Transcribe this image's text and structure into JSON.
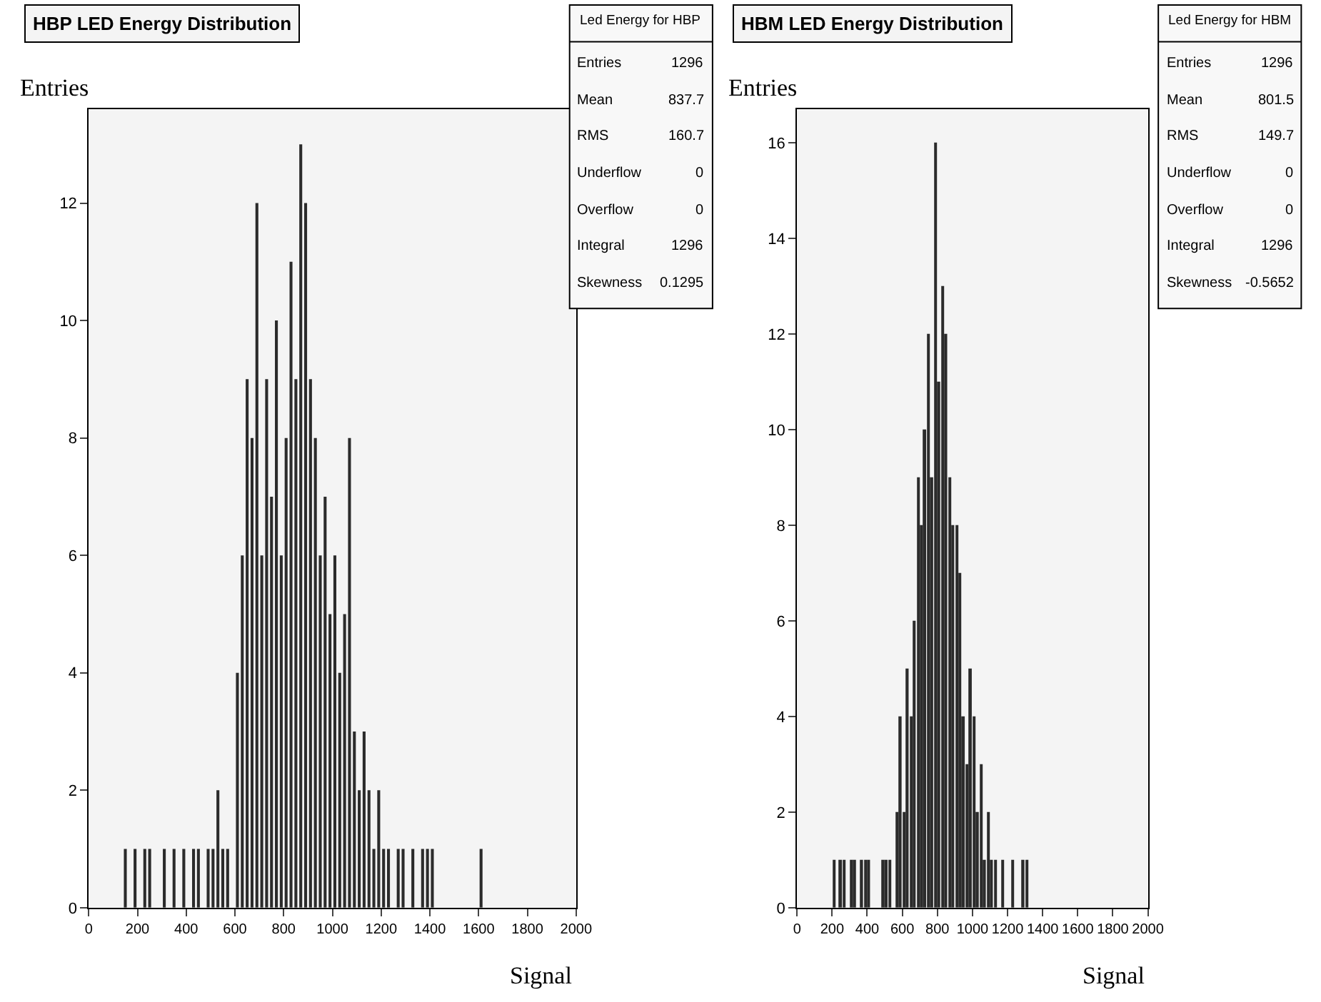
{
  "chart_data": [
    {
      "type": "histogram",
      "title": "HBP LED Energy Distribution",
      "xlabel": "Signal",
      "ylabel": "Entries",
      "bins": [
        0,
        20,
        40,
        60,
        80,
        100,
        120,
        140,
        160,
        180,
        200,
        220,
        240,
        260,
        280,
        300,
        320,
        340,
        360,
        380,
        400,
        420,
        440,
        460,
        480,
        500,
        520,
        540,
        560,
        580,
        600,
        620,
        640,
        660,
        680,
        700,
        720,
        740,
        760,
        780,
        800,
        820,
        840,
        860,
        880,
        900,
        920,
        940,
        960,
        980,
        1000,
        1020,
        1040,
        1060,
        1080,
        1100,
        1120,
        1140,
        1160,
        1180,
        1200,
        1220,
        1240,
        1260,
        1280,
        1300,
        1320,
        1340,
        1360,
        1380,
        1400,
        1420,
        1440,
        1460,
        1480,
        1500,
        1520,
        1540,
        1560,
        1580,
        1600,
        1620,
        1640,
        1660,
        1680,
        1700,
        1720,
        1740,
        1760,
        1780,
        1800,
        1820,
        1840,
        1860,
        1880,
        1900,
        1920,
        1940,
        1960,
        1980,
        2000
      ],
      "values": [
        0,
        0,
        0,
        0,
        0,
        0,
        0,
        1,
        0,
        1,
        0,
        1,
        1,
        0,
        0,
        1,
        0,
        1,
        0,
        1,
        0,
        1,
        1,
        0,
        1,
        1,
        2,
        1,
        1,
        0,
        4,
        6,
        9,
        8,
        12,
        6,
        9,
        7,
        10,
        6,
        8,
        11,
        9,
        13,
        12,
        9,
        8,
        6,
        7,
        5,
        6,
        4,
        5,
        8,
        3,
        2,
        3,
        2,
        1,
        2,
        1,
        1,
        0,
        1,
        1,
        0,
        1,
        0,
        1,
        1,
        1,
        0,
        0,
        0,
        0,
        0,
        0,
        0,
        0,
        0,
        1,
        0,
        0,
        0,
        0,
        0,
        0,
        0,
        0,
        0,
        0,
        0,
        0,
        0,
        0,
        0,
        0,
        0,
        0,
        0
      ],
      "color": "#2b2b2b",
      "xlim": [
        0,
        2000
      ],
      "xticks": [
        0,
        200,
        400,
        600,
        800,
        1000,
        1200,
        1400,
        1600,
        1800,
        2000
      ],
      "ylim": [
        0,
        13.6
      ],
      "yticks": [
        0,
        2,
        4,
        6,
        8,
        10,
        12
      ],
      "grid": false,
      "annotations": [
        "Led Energy for HBP",
        "Entries 1296",
        "Mean 837.7",
        "RMS 160.7",
        "Underflow 0",
        "Overflow 0",
        "Integral 1296",
        "Skewness 0.1295"
      ]
    },
    {
      "type": "histogram",
      "title": "HBM LED Energy Distribution",
      "xlabel": "Signal",
      "ylabel": "Entries",
      "bins": [
        0,
        20,
        40,
        60,
        80,
        100,
        120,
        140,
        160,
        180,
        200,
        220,
        240,
        260,
        280,
        300,
        320,
        340,
        360,
        380,
        400,
        420,
        440,
        460,
        480,
        500,
        520,
        540,
        560,
        580,
        600,
        620,
        640,
        660,
        680,
        700,
        720,
        740,
        760,
        780,
        800,
        820,
        840,
        860,
        880,
        900,
        920,
        940,
        960,
        980,
        1000,
        1020,
        1040,
        1060,
        1080,
        1100,
        1120,
        1140,
        1160,
        1180,
        1200,
        1220,
        1240,
        1260,
        1280,
        1300,
        1320,
        1340,
        1360,
        1380,
        1400,
        1420,
        1440,
        1460,
        1480,
        1500,
        1520,
        1540,
        1560,
        1580,
        1600,
        1620,
        1640,
        1660,
        1680,
        1700,
        1720,
        1740,
        1760,
        1780,
        1800,
        1820,
        1840,
        1860,
        1880,
        1900,
        1920,
        1940,
        1960,
        1980,
        2000
      ],
      "values": [
        0,
        0,
        0,
        0,
        0,
        0,
        0,
        0,
        0,
        0,
        1,
        0,
        1,
        1,
        0,
        1,
        1,
        0,
        1,
        1,
        1,
        0,
        0,
        0,
        1,
        1,
        1,
        0,
        2,
        4,
        2,
        5,
        4,
        6,
        9,
        8,
        10,
        12,
        9,
        16,
        11,
        13,
        12,
        9,
        8,
        8,
        7,
        4,
        3,
        5,
        4,
        2,
        3,
        1,
        2,
        1,
        1,
        0,
        1,
        0,
        0,
        1,
        0,
        0,
        1,
        1,
        0,
        0,
        0,
        0,
        0,
        0,
        0,
        0,
        0,
        0,
        0,
        0,
        0,
        0,
        0,
        0,
        0,
        0,
        0,
        0,
        0,
        0,
        0,
        0,
        0,
        0,
        0,
        0,
        0,
        0,
        0,
        0,
        0,
        0
      ],
      "color": "#2b2b2b",
      "xlim": [
        0,
        2000
      ],
      "xticks": [
        0,
        200,
        400,
        600,
        800,
        1000,
        1200,
        1400,
        1600,
        1800,
        2000
      ],
      "ylim": [
        0,
        16.7
      ],
      "yticks": [
        0,
        2,
        4,
        6,
        8,
        10,
        12,
        14,
        16
      ],
      "grid": false,
      "annotations": [
        "Led Energy for HBM",
        "Entries 1296",
        "Mean 801.5",
        "RMS 149.7",
        "Underflow 0",
        "Overflow 0",
        "Integral 1296",
        "Skewness -0.5652"
      ]
    }
  ]
}
